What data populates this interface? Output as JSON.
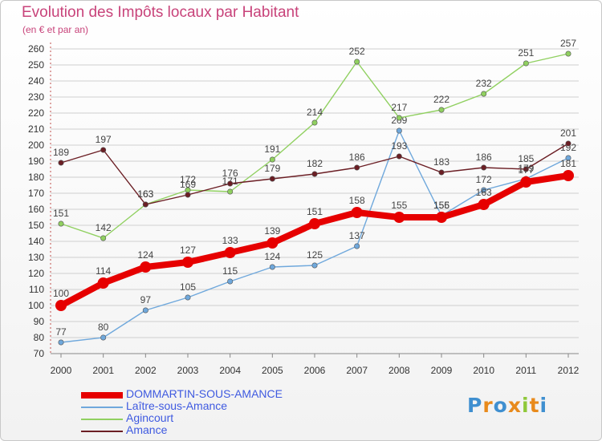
{
  "header": {
    "title": "Evolution des Impôts locaux par Habitant",
    "subtitle": "(en € et par an)"
  },
  "logo": {
    "text": "Proxiti",
    "colors": [
      "#3f8fd0",
      "#e88a1c",
      "#3f8fd0",
      "#e88a1c",
      "#8fc83a",
      "#e88a1c",
      "#3f8fd0"
    ]
  },
  "chart_data": {
    "type": "line",
    "x": [
      "2000",
      "2001",
      "2002",
      "2003",
      "2004",
      "2005",
      "2006",
      "2007",
      "2008",
      "2009",
      "2010",
      "2011",
      "2012"
    ],
    "ylim": [
      70,
      260
    ],
    "yticks": [
      70,
      80,
      90,
      100,
      110,
      120,
      130,
      140,
      150,
      160,
      170,
      180,
      190,
      200,
      210,
      220,
      230,
      240,
      250,
      260
    ],
    "grid": "horizontal",
    "legend_position": "bottom-left",
    "series": [
      {
        "name": "DOMMARTIN-SOUS-AMANCE",
        "color": "#e60000",
        "values": [
          100,
          114,
          124,
          127,
          133,
          139,
          151,
          158,
          155,
          155,
          163,
          177,
          181
        ],
        "labels": [
          "100",
          "114",
          "124",
          "127",
          "133",
          "139",
          "151",
          "158",
          "155",
          "155",
          "163",
          "177",
          "181"
        ]
      },
      {
        "name": "Laître-sous-Amance",
        "color": "#6fa8dc",
        "values": [
          77,
          80,
          97,
          105,
          115,
          124,
          125,
          137,
          209,
          156,
          172,
          179,
          192
        ],
        "labels": [
          "77",
          "80",
          "97",
          "105",
          "115",
          "124",
          "125",
          "137",
          "209",
          "156",
          "172",
          "179",
          "192"
        ]
      },
      {
        "name": "Agincourt",
        "color": "#90d060",
        "values": [
          151,
          142,
          163,
          172,
          171,
          191,
          214,
          252,
          217,
          222,
          232,
          251,
          257
        ],
        "labels": [
          "151",
          "142",
          "163",
          "172",
          "171",
          "191",
          "214",
          "252",
          "217",
          "222",
          "232",
          "251",
          "257"
        ]
      },
      {
        "name": "Amance",
        "color": "#6b1e24",
        "values": [
          189,
          197,
          163,
          169,
          176,
          179,
          182,
          186,
          193,
          183,
          186,
          185,
          201
        ],
        "labels": [
          "189",
          "197",
          "163",
          "169",
          "176",
          "179",
          "182",
          "186",
          "193",
          "183",
          "186",
          "185",
          "201"
        ]
      }
    ]
  }
}
